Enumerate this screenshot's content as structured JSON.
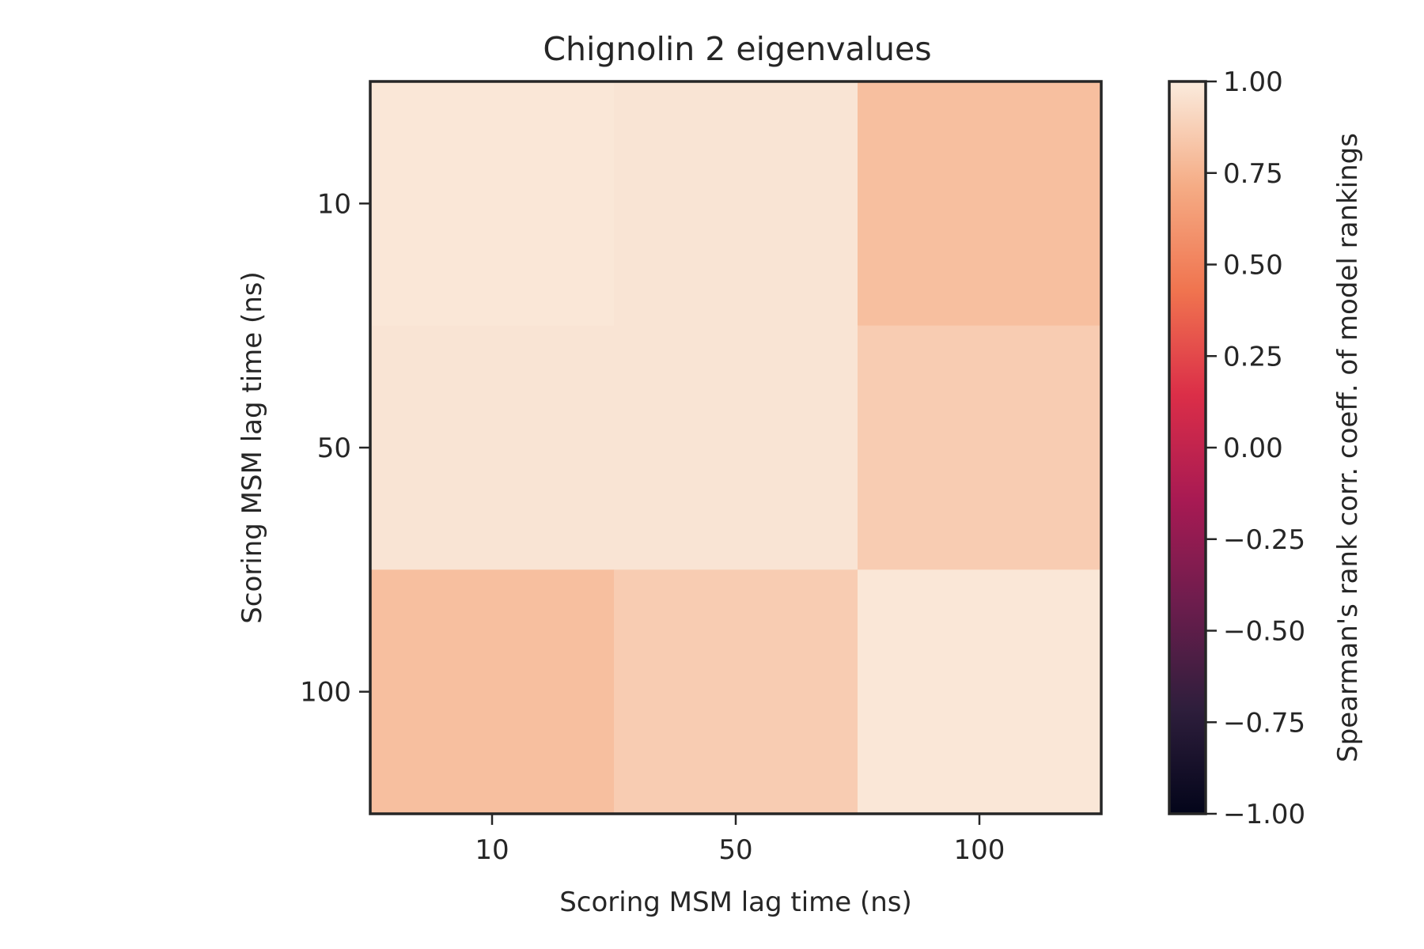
{
  "chart_data": {
    "type": "heatmap",
    "title": "Chignolin 2 eigenvalues",
    "xlabel": "Scoring MSM lag time (ns)",
    "ylabel": "Scoring MSM lag time (ns)",
    "x_categories": [
      "10",
      "50",
      "100"
    ],
    "y_categories": [
      "10",
      "50",
      "100"
    ],
    "values": [
      [
        0.98,
        0.97,
        0.8
      ],
      [
        0.97,
        0.97,
        0.86
      ],
      [
        0.8,
        0.86,
        0.98
      ]
    ],
    "colorbar": {
      "label": "Spearman's rank corr. coeff. of model rankings",
      "range": [
        -1.0,
        1.0
      ],
      "ticks": [
        1.0,
        0.75,
        0.5,
        0.25,
        0.0,
        -0.25,
        -0.5,
        -0.75,
        -1.0
      ],
      "tick_labels": [
        "1.00",
        "0.75",
        "0.50",
        "0.25",
        "0.00",
        "−0.25",
        "−0.50",
        "−0.75",
        "−1.00"
      ],
      "colormap": "rocket",
      "colormap_stops": [
        "#03051a",
        "#2e1e3c",
        "#6c1d4d",
        "#a81a53",
        "#db2e48",
        "#f0744f",
        "#f5ac85",
        "#faebdd"
      ]
    },
    "grid": false
  }
}
